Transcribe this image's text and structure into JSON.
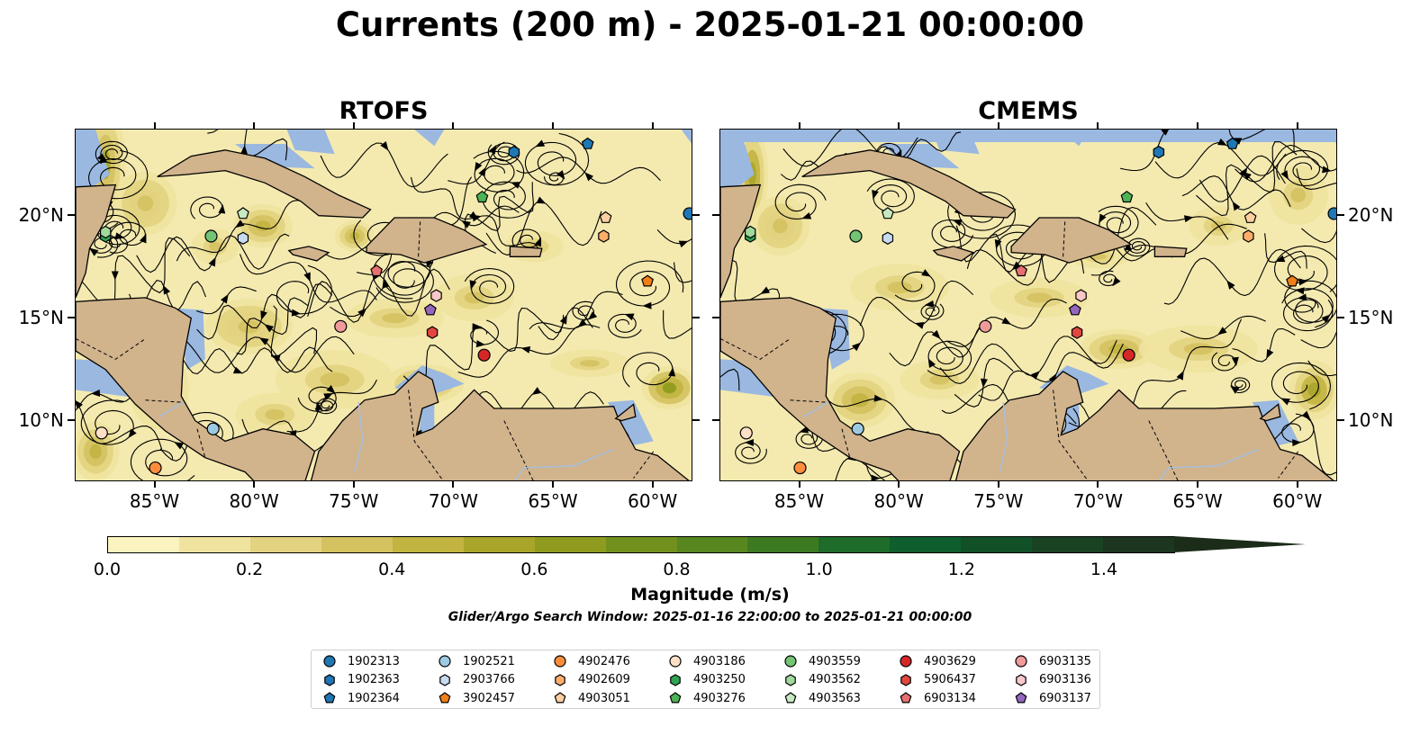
{
  "title": "Currents (200 m) - 2025-01-21 00:00:00",
  "panels": [
    {
      "name": "RTOFS"
    },
    {
      "name": "CMEMS"
    }
  ],
  "axes": {
    "lon_labels": [
      "85°W",
      "80°W",
      "75°W",
      "70°W",
      "65°W",
      "60°W"
    ],
    "lon_values": [
      -85,
      -80,
      -75,
      -70,
      -65,
      -60
    ],
    "lat_labels": [
      "20°N",
      "15°N",
      "10°N"
    ],
    "lat_values": [
      20,
      15,
      10
    ],
    "lon_range": [
      -89,
      -58
    ],
    "lat_range": [
      7,
      24.2
    ]
  },
  "colorbar": {
    "title": "Magnitude (m/s)",
    "tick_labels": [
      "0.0",
      "0.2",
      "0.4",
      "0.6",
      "0.8",
      "1.0",
      "1.2",
      "1.4"
    ],
    "range": [
      0,
      1.5
    ],
    "extend": "max",
    "colors": [
      "#fbf4c0",
      "#f0e3a0",
      "#e2d380",
      "#d4c260",
      "#c2b440",
      "#a9a52a",
      "#8e9b1e",
      "#72901e",
      "#58861f",
      "#3c7a22",
      "#1f6b29",
      "#0f5e2e",
      "#125128",
      "#1a4324",
      "#1c3620",
      "#1b2c18"
    ]
  },
  "search_window": "Glider/Argo Search Window: 2025-01-16 22:00:00 to 2025-01-21 00:00:00",
  "colors": {
    "land": "#d1b38c",
    "ocean_shallow": "#9ab8e0",
    "water_base": "#f4eab0"
  },
  "legend": {
    "items": [
      {
        "id": "1902313",
        "marker": "circle",
        "color": "#1f77b4"
      },
      {
        "id": "1902363",
        "marker": "hexagon",
        "color": "#1f77b4"
      },
      {
        "id": "1902364",
        "marker": "pentagon",
        "color": "#1f77b4"
      },
      {
        "id": "1902521",
        "marker": "circle",
        "color": "#9ecae1"
      },
      {
        "id": "2903766",
        "marker": "hexagon",
        "color": "#c6dbef"
      },
      {
        "id": "3902457",
        "marker": "pentagon",
        "color": "#f07f18"
      },
      {
        "id": "4902476",
        "marker": "circle",
        "color": "#fd8d3c"
      },
      {
        "id": "4902609",
        "marker": "hexagon",
        "color": "#fdae6b"
      },
      {
        "id": "4903051",
        "marker": "pentagon",
        "color": "#fdd0a2"
      },
      {
        "id": "4903186",
        "marker": "circle",
        "color": "#fde0c5"
      },
      {
        "id": "4903250",
        "marker": "hexagon",
        "color": "#31a354"
      },
      {
        "id": "4903276",
        "marker": "pentagon",
        "color": "#4db356"
      },
      {
        "id": "4903559",
        "marker": "circle",
        "color": "#74c476"
      },
      {
        "id": "4903562",
        "marker": "hexagon",
        "color": "#a1d99b"
      },
      {
        "id": "4903563",
        "marker": "pentagon",
        "color": "#c7e9c0"
      },
      {
        "id": "4903629",
        "marker": "circle",
        "color": "#d62728"
      },
      {
        "id": "5906437",
        "marker": "hexagon",
        "color": "#e0473f"
      },
      {
        "id": "6903134",
        "marker": "pentagon",
        "color": "#e87070"
      },
      {
        "id": "6903135",
        "marker": "circle",
        "color": "#f09a9a"
      },
      {
        "id": "6903136",
        "marker": "hexagon",
        "color": "#f8c8c8"
      },
      {
        "id": "6903137",
        "marker": "pentagon",
        "color": "#9467bd"
      }
    ]
  },
  "floats": [
    {
      "id": "1902313",
      "lon": -58.2,
      "lat": 20.1
    },
    {
      "id": "1902363",
      "lon": -67.0,
      "lat": 23.1
    },
    {
      "id": "1902364",
      "lon": -63.3,
      "lat": 23.5
    },
    {
      "id": "1902521",
      "lon": -82.1,
      "lat": 9.6
    },
    {
      "id": "2903766",
      "lon": -80.6,
      "lat": 18.9
    },
    {
      "id": "3902457",
      "lon": -60.3,
      "lat": 16.8
    },
    {
      "id": "4902476",
      "lon": -85.0,
      "lat": 7.7
    },
    {
      "id": "4902609",
      "lon": -62.5,
      "lat": 19.0
    },
    {
      "id": "4903051",
      "lon": -62.4,
      "lat": 19.9
    },
    {
      "id": "4903186",
      "lon": -87.7,
      "lat": 9.4
    },
    {
      "id": "4903250",
      "lon": -87.5,
      "lat": 19.0
    },
    {
      "id": "4903276",
      "lon": -68.6,
      "lat": 20.9
    },
    {
      "id": "4903559",
      "lon": -82.2,
      "lat": 19.0
    },
    {
      "id": "4903562",
      "lon": -87.5,
      "lat": 19.2
    },
    {
      "id": "4903563",
      "lon": -80.6,
      "lat": 20.1
    },
    {
      "id": "4903629",
      "lon": -68.5,
      "lat": 13.2
    },
    {
      "id": "5906437",
      "lon": -71.1,
      "lat": 14.3
    },
    {
      "id": "6903134",
      "lon": -73.9,
      "lat": 17.3
    },
    {
      "id": "6903135",
      "lon": -75.7,
      "lat": 14.6
    },
    {
      "id": "6903136",
      "lon": -70.9,
      "lat": 16.1
    },
    {
      "id": "6903137",
      "lon": -71.2,
      "lat": 15.4
    }
  ]
}
